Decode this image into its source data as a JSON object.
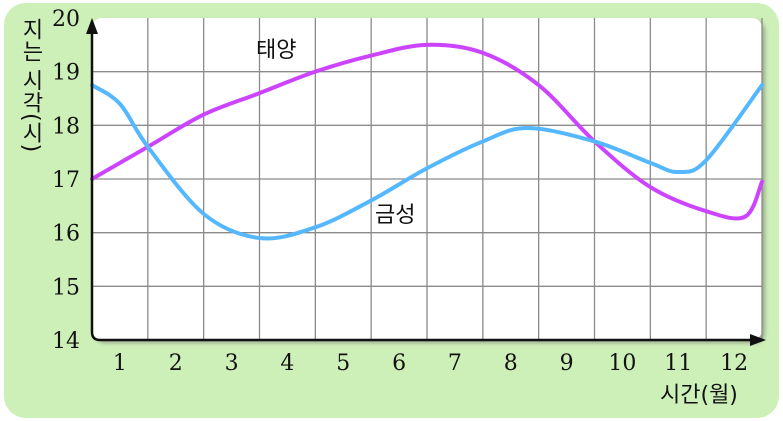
{
  "chart_data": {
    "type": "line",
    "title": "",
    "ylabel": "지는 시각(시)",
    "xlabel": "시간(월)",
    "x_ticks": [
      "1",
      "2",
      "3",
      "4",
      "5",
      "6",
      "7",
      "8",
      "9",
      "10",
      "11",
      "12"
    ],
    "y_ticks": [
      "14",
      "15",
      "16",
      "17",
      "18",
      "19",
      "20"
    ],
    "xlim": [
      0.5,
      12.5
    ],
    "ylim": [
      14,
      20
    ],
    "grid": true,
    "series": [
      {
        "name": "태양",
        "color": "#cc44ff",
        "x": [
          0.5,
          1.5,
          2.5,
          3.5,
          4.5,
          5.5,
          6.5,
          7.5,
          8.5,
          9.5,
          10.5,
          11.5,
          12.2,
          12.5
        ],
        "y": [
          17.0,
          17.6,
          18.2,
          18.6,
          19.0,
          19.3,
          19.5,
          19.35,
          18.75,
          17.7,
          16.85,
          16.4,
          16.3,
          16.95
        ]
      },
      {
        "name": "금성",
        "color": "#55b8ff",
        "x": [
          0.5,
          1.0,
          1.5,
          2.5,
          3.5,
          4.5,
          5.5,
          6.5,
          7.5,
          8.3,
          9.5,
          10.5,
          11.0,
          11.5,
          12.5
        ],
        "y": [
          18.75,
          18.4,
          17.6,
          16.35,
          15.9,
          16.1,
          16.6,
          17.2,
          17.7,
          17.95,
          17.7,
          17.3,
          17.13,
          17.35,
          18.75
        ]
      }
    ]
  },
  "colors": {
    "background": "#cdf0b8",
    "plot": "#ffffff",
    "grid": "#8a8a8a"
  }
}
